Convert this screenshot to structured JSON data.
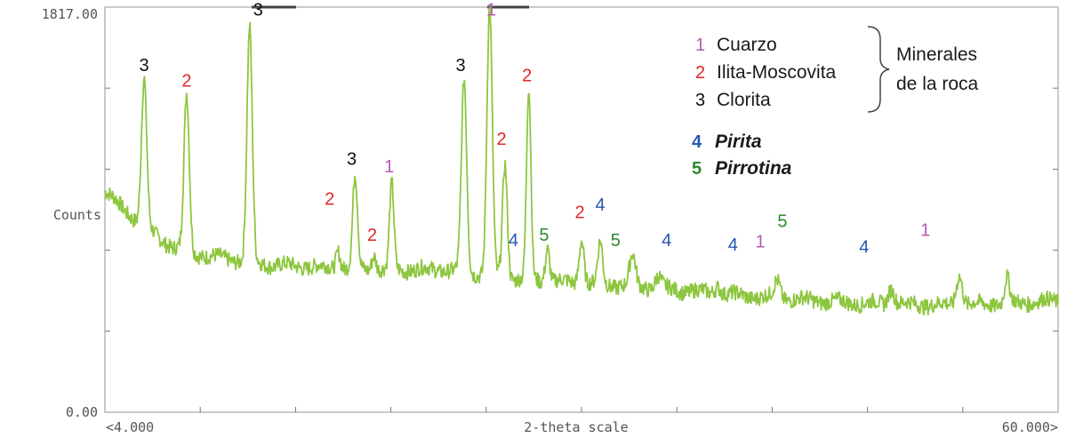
{
  "chart_data": {
    "type": "line",
    "title": "",
    "xlabel": "2-theta scale",
    "ylabel": "Counts",
    "xlim": [
      4,
      60
    ],
    "ylim": [
      0,
      1817
    ],
    "x_tick_labels": {
      "min": "<4.000",
      "max": "60.000>"
    },
    "y_tick_labels": {
      "min": "0.00",
      "max": "1817.00"
    },
    "grid": false,
    "line_color": "#8dc63f",
    "baseline": [
      [
        4,
        990
      ],
      [
        6,
        850
      ],
      [
        8,
        740
      ],
      [
        10,
        700
      ],
      [
        14,
        660
      ],
      [
        20,
        640
      ],
      [
        24,
        640
      ],
      [
        28,
        600
      ],
      [
        32,
        580
      ],
      [
        36,
        560
      ],
      [
        42,
        520
      ],
      [
        48,
        490
      ],
      [
        54,
        480
      ],
      [
        60,
        500
      ]
    ],
    "peaks": [
      {
        "x": 6.3,
        "y": 1490,
        "w": 0.22
      },
      {
        "x": 8.8,
        "y": 1420,
        "w": 0.22
      },
      {
        "x": 12.5,
        "y": 1717,
        "w": 0.22
      },
      {
        "x": 17.7,
        "y": 730,
        "w": 0.18
      },
      {
        "x": 18.7,
        "y": 1060,
        "w": 0.2
      },
      {
        "x": 19.8,
        "y": 710,
        "w": 0.18
      },
      {
        "x": 20.85,
        "y": 1020,
        "w": 0.18
      },
      {
        "x": 25.1,
        "y": 1490,
        "w": 0.22
      },
      {
        "x": 26.6,
        "y": 1817,
        "w": 0.22
      },
      {
        "x": 27.5,
        "y": 1120,
        "w": 0.2
      },
      {
        "x": 28.9,
        "y": 1450,
        "w": 0.18
      },
      {
        "x": 30.0,
        "y": 740,
        "w": 0.18
      },
      {
        "x": 32.0,
        "y": 780,
        "w": 0.2
      },
      {
        "x": 33.1,
        "y": 760,
        "w": 0.2
      },
      {
        "x": 35.0,
        "y": 700,
        "w": 0.25
      },
      {
        "x": 36.5,
        "y": 610,
        "w": 0.25
      },
      {
        "x": 40.0,
        "y": 570,
        "w": 0.25
      },
      {
        "x": 43.5,
        "y": 590,
        "w": 0.25
      },
      {
        "x": 50.2,
        "y": 560,
        "w": 0.25
      },
      {
        "x": 54.2,
        "y": 620,
        "w": 0.25
      },
      {
        "x": 57.0,
        "y": 600,
        "w": 0.2
      }
    ],
    "annotations": [
      {
        "text": "3",
        "mineral": 3,
        "x": 6.3,
        "y": 1530
      },
      {
        "text": "2",
        "mineral": 2,
        "x": 8.8,
        "y": 1460
      },
      {
        "text": "3",
        "mineral": 3,
        "x": 13.0,
        "y": 1780
      },
      {
        "text": "2",
        "mineral": 2,
        "x": 17.2,
        "y": 930
      },
      {
        "text": "3",
        "mineral": 3,
        "x": 18.5,
        "y": 1110
      },
      {
        "text": "2",
        "mineral": 2,
        "x": 19.7,
        "y": 770
      },
      {
        "text": "1",
        "mineral": 1,
        "x": 20.7,
        "y": 1075
      },
      {
        "text": "3",
        "mineral": 3,
        "x": 24.9,
        "y": 1530
      },
      {
        "text": "1",
        "mineral": 1,
        "x": 26.7,
        "y": 1780
      },
      {
        "text": "2",
        "mineral": 2,
        "x": 27.3,
        "y": 1200
      },
      {
        "text": "2",
        "mineral": 2,
        "x": 28.8,
        "y": 1485
      },
      {
        "text": "4",
        "mineral": 4,
        "x": 28.0,
        "y": 745
      },
      {
        "text": "5",
        "mineral": 5,
        "x": 29.8,
        "y": 770
      },
      {
        "text": "2",
        "mineral": 2,
        "x": 31.9,
        "y": 870
      },
      {
        "text": "4",
        "mineral": 4,
        "x": 33.1,
        "y": 905
      },
      {
        "text": "5",
        "mineral": 5,
        "x": 34.0,
        "y": 745
      },
      {
        "text": "4",
        "mineral": 4,
        "x": 37.0,
        "y": 745
      },
      {
        "text": "4",
        "mineral": 4,
        "x": 40.9,
        "y": 725
      },
      {
        "text": "1",
        "mineral": 1,
        "x": 42.5,
        "y": 740
      },
      {
        "text": "5",
        "mineral": 5,
        "x": 43.8,
        "y": 830
      },
      {
        "text": "4",
        "mineral": 4,
        "x": 48.6,
        "y": 715
      },
      {
        "text": "1",
        "mineral": 1,
        "x": 52.2,
        "y": 790
      }
    ]
  },
  "legend": {
    "items": [
      {
        "num": "1",
        "label": "Cuarzo",
        "color": "#b45ab0",
        "bold": false
      },
      {
        "num": "2",
        "label": "Ilita-Moscovita",
        "color": "#e0262a",
        "bold": false
      },
      {
        "num": "3",
        "label": "Clorita",
        "color": "#111111",
        "bold": false
      },
      {
        "num": "4",
        "label": "Pirita",
        "color": "#2457b0",
        "bold": true
      },
      {
        "num": "5",
        "label": "Pirrotina",
        "color": "#2c8a2c",
        "bold": true
      }
    ],
    "group_label_line1": "Minerales",
    "group_label_line2": "de la roca"
  },
  "colors": {
    "1": "#b45ab0",
    "2": "#e0262a",
    "3": "#111111",
    "4": "#2457b0",
    "5": "#2c8a2c"
  }
}
